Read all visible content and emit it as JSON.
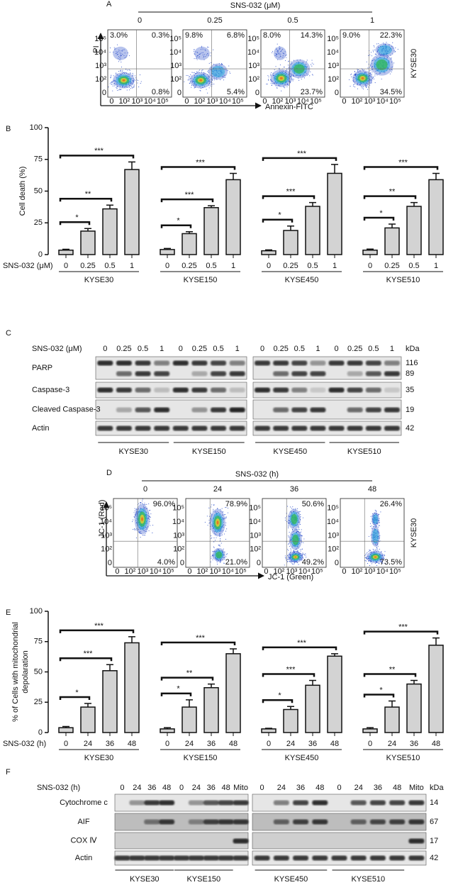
{
  "panel_a": {
    "label": "A",
    "title": "SNS-032 (μM)",
    "doses": [
      "0",
      "0.25",
      "0.5",
      "1"
    ],
    "y_axis": "PI",
    "x_axis": "Annexin-FITC",
    "cell_line": "KYSE30",
    "axis_ticks": [
      "0",
      "10²",
      "10³",
      "10⁴",
      "10⁵"
    ],
    "plots": [
      {
        "upper_left": "3.0%",
        "upper_right": "0.3%",
        "lower_right": "0.8%"
      },
      {
        "upper_left": "9.8%",
        "upper_right": "6.8%",
        "lower_right": "5.4%"
      },
      {
        "upper_left": "8.0%",
        "upper_right": "14.3%",
        "lower_right": "23.7%"
      },
      {
        "upper_left": "9.0%",
        "upper_right": "22.3%",
        "lower_right": "34.5%"
      }
    ]
  },
  "panel_c": {
    "label": "C",
    "treatment": "SNS-032 (μM)",
    "kda_label": "kDa",
    "lanes": [
      [
        "0",
        "0.25",
        "0.5",
        "1",
        "0",
        "0.25",
        "0.5",
        "1"
      ],
      [
        "0",
        "0.25",
        "0.5",
        "1",
        "0",
        "0.25",
        "0.5",
        "1"
      ]
    ],
    "rows": [
      {
        "name": "PARP",
        "markers": [
          "116",
          "89"
        ]
      },
      {
        "name": "Caspase-3",
        "markers": [
          "35"
        ]
      },
      {
        "name": "Cleaved Caspase-3",
        "markers": [
          "19"
        ]
      },
      {
        "name": "Actin",
        "markers": [
          "42"
        ]
      }
    ],
    "cell_lines": [
      "KYSE30",
      "KYSE150",
      "KYSE450",
      "KYSE510"
    ]
  },
  "panel_d": {
    "label": "D",
    "title": "SNS-032 (h)",
    "times": [
      "0",
      "24",
      "36",
      "48"
    ],
    "y_axis": "JC-1 (Red)",
    "x_axis": "JC-1 (Green)",
    "cell_line": "KYSE30",
    "axis_ticks": [
      "0",
      "10²",
      "10³",
      "10⁴",
      "10⁵"
    ],
    "plots": [
      {
        "upper_right": "96.0%",
        "lower_right": "4.0%"
      },
      {
        "upper_right": "78.9%",
        "lower_right": "21.0%"
      },
      {
        "upper_right": "50.6%",
        "lower_right": "49.2%"
      },
      {
        "upper_right": "26.4%",
        "lower_right": "73.5%"
      }
    ]
  },
  "panel_f": {
    "label": "F",
    "treatment": "SNS-032 (h)",
    "kda_label": "kDa",
    "lanes": [
      [
        "0",
        "24",
        "36",
        "48",
        "0",
        "24",
        "36",
        "48",
        "Mito"
      ],
      [
        "0",
        "24",
        "36",
        "48",
        "0",
        "24",
        "36",
        "48",
        "Mito"
      ]
    ],
    "rows": [
      {
        "name": "Cytochrome c",
        "markers": [
          "14"
        ]
      },
      {
        "name": "AIF",
        "markers": [
          "67"
        ]
      },
      {
        "name": "COX Ⅳ",
        "markers": [
          "17"
        ]
      },
      {
        "name": "Actin",
        "markers": [
          "42"
        ]
      }
    ],
    "cell_lines": [
      "KYSE30",
      "KYSE150",
      "KYSE450",
      "KYSE510"
    ]
  },
  "chart_data": [
    {
      "type": "bar",
      "panel_label": "B",
      "y_label": "Cell death (%)",
      "x_label": "SNS-032 (μM)",
      "color": "#d3d3d3",
      "ylim": [
        0,
        100
      ],
      "yticks": [
        0,
        25,
        50,
        75,
        100
      ],
      "categories": [
        "0",
        "0.25",
        "0.5",
        "1"
      ],
      "series": [
        {
          "name": "KYSE30",
          "values": [
            3.5,
            18.5,
            36,
            67
          ],
          "errors": [
            0.7,
            2,
            3,
            6
          ],
          "significance": [
            "*",
            "**",
            "***"
          ]
        },
        {
          "name": "KYSE150",
          "values": [
            4,
            16.5,
            37,
            59
          ],
          "errors": [
            0.8,
            1.5,
            1.5,
            5
          ],
          "significance": [
            "*",
            "***",
            "***"
          ]
        },
        {
          "name": "KYSE450",
          "values": [
            3,
            19,
            38,
            64
          ],
          "errors": [
            0.7,
            3.5,
            3,
            7
          ],
          "significance": [
            "*",
            "***",
            "***"
          ]
        },
        {
          "name": "KYSE510",
          "values": [
            3.5,
            21,
            38,
            59
          ],
          "errors": [
            0.8,
            3,
            3,
            5
          ],
          "significance": [
            "*",
            "**",
            "***"
          ]
        }
      ]
    },
    {
      "type": "bar",
      "panel_label": "E",
      "y_label": [
        "% of Cells with mitochondrial",
        "depolaration"
      ],
      "x_label": "SNS-032 (h)",
      "color": "#d3d3d3",
      "ylim": [
        0,
        100
      ],
      "yticks": [
        0,
        25,
        50,
        75,
        100
      ],
      "categories": [
        "0",
        "24",
        "36",
        "48"
      ],
      "series": [
        {
          "name": "KYSE30",
          "values": [
            4,
            21,
            51,
            74
          ],
          "errors": [
            1,
            3,
            5,
            5
          ],
          "significance": [
            "*",
            "***",
            "***"
          ]
        },
        {
          "name": "KYSE150",
          "values": [
            3,
            21,
            37,
            65
          ],
          "errors": [
            1,
            6,
            3,
            4
          ],
          "significance": [
            "*",
            "**",
            "***"
          ]
        },
        {
          "name": "KYSE450",
          "values": [
            3,
            19,
            39,
            63
          ],
          "errors": [
            0.5,
            2.5,
            4,
            2
          ],
          "significance": [
            "*",
            "***",
            "***"
          ]
        },
        {
          "name": "KYSE510",
          "values": [
            3,
            21,
            40,
            72
          ],
          "errors": [
            1,
            5,
            3,
            6
          ],
          "significance": [
            "*",
            "**",
            "***"
          ]
        }
      ]
    }
  ]
}
